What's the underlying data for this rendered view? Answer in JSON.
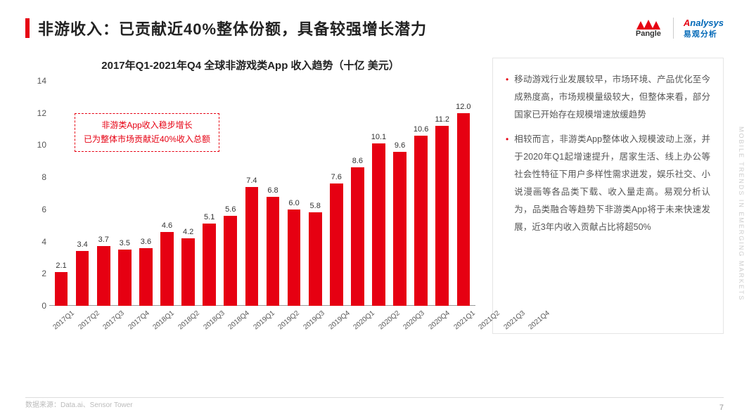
{
  "header": {
    "title": "非游收入：已贡献近40%整体份额，具备较强增长潜力",
    "pangle_label": "Pangle",
    "analysys_top_red": "A",
    "analysys_top_blue": "nalysys",
    "analysys_sub": "易观分析"
  },
  "chart": {
    "type": "bar",
    "title": "2017年Q1-2021年Q4 全球非游戏类App 收入趋势（十亿 美元）",
    "categories": [
      "2017Q1",
      "2017Q2",
      "2017Q3",
      "2017Q4",
      "2018Q1",
      "2018Q2",
      "2018Q3",
      "2018Q4",
      "2019Q1",
      "2019Q2",
      "2019Q3",
      "2019Q4",
      "2020Q1",
      "2020Q2",
      "2020Q3",
      "2020Q4",
      "2021Q1",
      "2021Q2",
      "2021Q3",
      "2021Q4"
    ],
    "values": [
      2.1,
      3.4,
      3.7,
      3.5,
      3.6,
      4.6,
      4.2,
      5.1,
      5.6,
      7.4,
      6.8,
      6.0,
      5.8,
      7.6,
      8.6,
      10.1,
      9.6,
      10.6,
      11.2,
      12.0
    ],
    "value_labels": [
      "2.1",
      "3.4",
      "3.7",
      "3.5",
      "3.6",
      "4.6",
      "4.2",
      "5.1",
      "5.6",
      "7.4",
      "6.8",
      "6.0",
      "5.8",
      "7.6",
      "8.6",
      "10.1",
      "9.6",
      "10.6",
      "11.2",
      "12.0"
    ],
    "bar_color": "#e60012",
    "ylim": [
      0,
      14
    ],
    "ytick_step": 2,
    "yticks": [
      0,
      2,
      4,
      6,
      8,
      10,
      12,
      14
    ],
    "background_color": "#ffffff",
    "axis_color": "#999999",
    "label_fontsize": 11,
    "tick_fontsize": 12,
    "title_fontsize": 15,
    "bar_width_ratio": 0.62,
    "annotation": {
      "line1": "非游类App收入稳步增长",
      "line2": "已为整体市场贡献近40%收入总额",
      "border_color": "#e60012",
      "text_color": "#e60012"
    }
  },
  "side_panel": {
    "bullets": [
      "移动游戏行业发展较早，市场环境、产品优化至今成熟度高，市场规模量级较大，但整体来看，部分国家已开始存在规模增速放缓趋势",
      "相较而言，非游类App整体收入规模波动上涨，并于2020年Q1起增速提升，居家生活、线上办公等社会性特征下用户多样性需求迸发，娱乐社交、小说漫画等各品类下载、收入量走高。易观分析认为，品类融合等趋势下非游类App将于未来快速发展，近3年内收入贡献占比将超50%"
    ],
    "bullet_color": "#e60012",
    "text_color": "#555555",
    "fontsize": 12.5,
    "border_color": "#e5e5e5"
  },
  "footer": {
    "source": "数据来源：Data.ai、Sensor Tower",
    "page_number": "7",
    "side_text": "MOBILE TRENDS IN EMERGING MARKETS"
  }
}
